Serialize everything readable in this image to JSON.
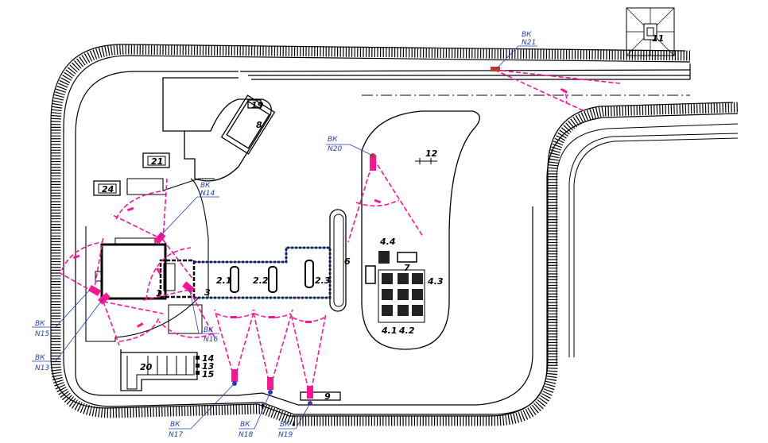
{
  "cameras": [
    {
      "id": "cam-n21",
      "prefix": "ВК",
      "number": "N21",
      "color": "#c0392b"
    },
    {
      "id": "cam-n20",
      "prefix": "ВК",
      "number": "N20",
      "color": "#c0392b"
    },
    {
      "id": "cam-n14",
      "prefix": "ВК",
      "number": "N14",
      "color": "#ff1493"
    },
    {
      "id": "cam-n15",
      "prefix": "ВК",
      "number": "N15",
      "color": "#ff1493"
    },
    {
      "id": "cam-n13",
      "prefix": "ВК",
      "number": "N13",
      "color": "#ff1493"
    },
    {
      "id": "cam-n16",
      "prefix": "ВК",
      "number": "N16",
      "color": "#ff1493"
    },
    {
      "id": "cam-n17",
      "prefix": "ВК",
      "number": "N17",
      "color": "#1f3fbf"
    },
    {
      "id": "cam-n18",
      "prefix": "ВК",
      "number": "N18",
      "color": "#1f3fbf"
    },
    {
      "id": "cam-n19",
      "prefix": "ВК",
      "number": "N19",
      "color": "#5b2d9c"
    }
  ],
  "zones": {
    "z1": "1",
    "z2_1": "2.1",
    "z2_2": "2.2",
    "z2_3": "2.3",
    "z3": "3",
    "z4_1": "4.1",
    "z4_2": "4.2",
    "z4_3": "4.3",
    "z4_4": "4.4",
    "z6": "6",
    "z7": "7",
    "z8": "8",
    "z9": "9",
    "z11": "11",
    "z12": "12",
    "z13": "13",
    "z14": "14",
    "z15": "15",
    "z19": "19",
    "z20": "20",
    "z21": "21",
    "z24": "24"
  },
  "colors": {
    "linework": "#000000",
    "camera_fov": "#ff1493",
    "camera_label": "#1f3fbf",
    "fence": "#1f3fbf"
  }
}
